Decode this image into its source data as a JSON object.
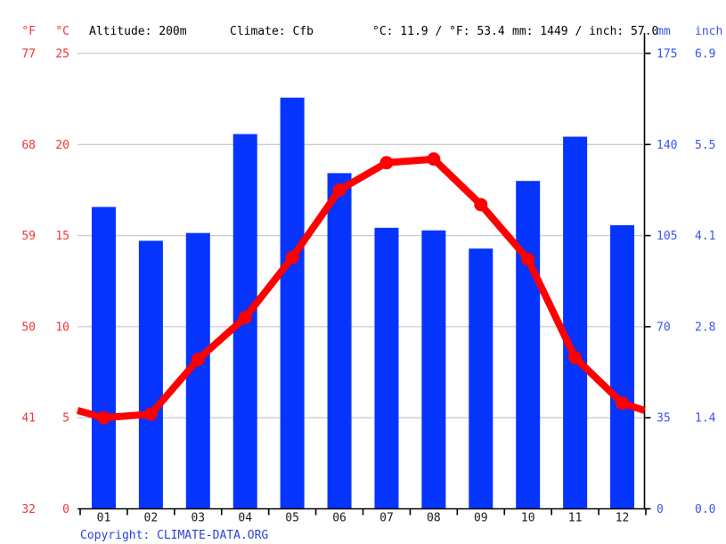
{
  "header": {
    "f_label": "°F",
    "c_label": "°C",
    "altitude": "Altitude: 200m",
    "climate": "Climate: Cfb",
    "avg_temp": "°C: 11.9 / °F: 53.4",
    "total_precip": "mm: 1449 / inch: 57.0",
    "mm_label": "mm",
    "inch_label": "inch"
  },
  "footer": {
    "copyright_label": "Copyright:",
    "copyright_link": "CLIMATE-DATA.ORG"
  },
  "chart_data": {
    "type": "bar+line",
    "title": "Climate graph",
    "categories": [
      "01",
      "02",
      "03",
      "04",
      "05",
      "06",
      "07",
      "08",
      "09",
      "10",
      "11",
      "12"
    ],
    "series": [
      {
        "name": "Precipitation (mm)",
        "type": "bar",
        "values": [
          116,
          103,
          106,
          144,
          158,
          129,
          108,
          107,
          100,
          126,
          143,
          109
        ]
      },
      {
        "name": "Temperature (°C)",
        "type": "line",
        "values": [
          5.0,
          5.2,
          8.2,
          10.5,
          13.8,
          17.5,
          19.0,
          19.2,
          16.7,
          13.7,
          8.3,
          5.8
        ]
      }
    ],
    "temp_axis": {
      "celsius_ticks": [
        25,
        20,
        15,
        10,
        5,
        0
      ],
      "fahrenheit_ticks": [
        77,
        68,
        59,
        50,
        41,
        32
      ],
      "range_c": [
        0,
        25
      ]
    },
    "precip_axis": {
      "mm_ticks": [
        175,
        140,
        105,
        70,
        35,
        0
      ],
      "inch_ticks": [
        "6.9",
        "5.5",
        "4.1",
        "2.8",
        "1.4",
        "0.0"
      ],
      "range_mm": [
        0,
        175
      ]
    },
    "line_edge_value": 5.4,
    "grid": true,
    "legend": "none"
  },
  "colors": {
    "bar": "#0534ff",
    "line": "#ff0000",
    "red_text": "#f53535",
    "blue_text": "#3b55ee",
    "copyright_text": "#2b3fd9",
    "grid": "#cccccc",
    "axis": "#000000",
    "month_text": "#1a1a1a"
  }
}
